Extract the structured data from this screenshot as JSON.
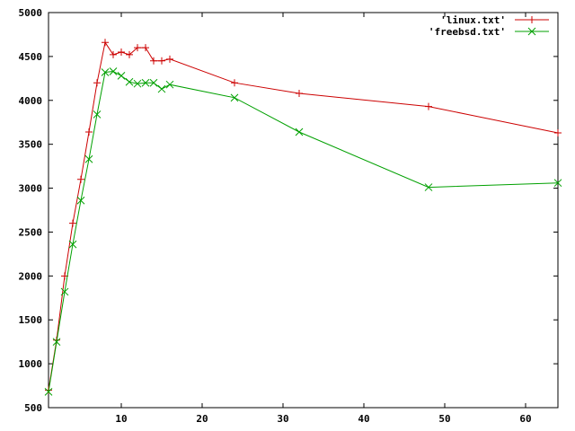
{
  "chart_data": {
    "type": "line",
    "xlim": [
      1,
      64
    ],
    "ylim": [
      500,
      5000
    ],
    "x_ticks": [
      10,
      20,
      30,
      40,
      50,
      60
    ],
    "y_ticks": [
      500,
      1000,
      1500,
      2000,
      2500,
      3000,
      3500,
      4000,
      4500,
      5000
    ],
    "grid": false,
    "legend_placement": "top-right",
    "series": [
      {
        "name": "'linux.txt'",
        "color": "#cc0000",
        "marker": "plus",
        "x": [
          1,
          2,
          3,
          4,
          5,
          6,
          7,
          8,
          9,
          10,
          11,
          12,
          13,
          14,
          15,
          16,
          24,
          32,
          48,
          64
        ],
        "y": [
          700,
          1270,
          2000,
          2600,
          3100,
          3640,
          4200,
          4660,
          4520,
          4550,
          4520,
          4600,
          4600,
          4450,
          4450,
          4470,
          4200,
          4080,
          3930,
          3630
        ]
      },
      {
        "name": "'freebsd.txt'",
        "color": "#00a000",
        "marker": "cross",
        "x": [
          1,
          2,
          3,
          4,
          5,
          6,
          7,
          8,
          9,
          10,
          11,
          12,
          13,
          14,
          15,
          16,
          24,
          32,
          48,
          64
        ],
        "y": [
          680,
          1250,
          1820,
          2360,
          2860,
          3330,
          3840,
          4320,
          4330,
          4280,
          4210,
          4190,
          4200,
          4200,
          4130,
          4180,
          4030,
          3640,
          3010,
          3060
        ]
      }
    ]
  }
}
